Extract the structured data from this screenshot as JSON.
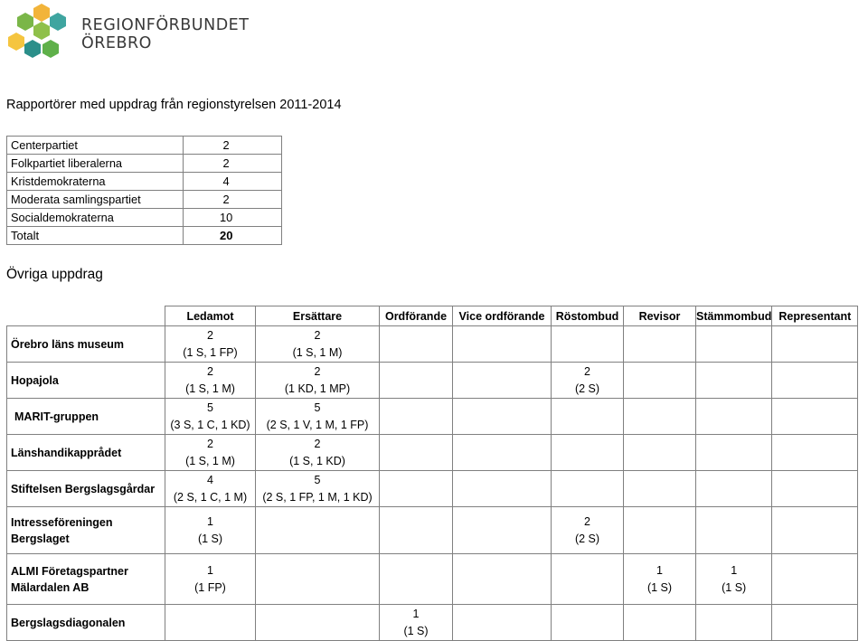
{
  "header": {
    "logo_line1": "REGIONFÖRBUNDET",
    "logo_line2": "ÖREBRO",
    "logo_colors": [
      "#f2b43a",
      "#7ab648",
      "#3fa5a0",
      "#8fc04a",
      "#f5c53f",
      "#2b8f8a",
      "#5fb04a"
    ]
  },
  "doc_title": "Rapportörer med uppdrag från regionstyrelsen 2011-2014",
  "summary": {
    "rows": [
      {
        "party": "Centerpartiet",
        "count": "2"
      },
      {
        "party": "Folkpartiet liberalerna",
        "count": "2"
      },
      {
        "party": "Kristdemokraterna",
        "count": "4"
      },
      {
        "party": "Moderata samlingspartiet",
        "count": "2"
      },
      {
        "party": "Socialdemokraterna",
        "count": "10"
      }
    ],
    "total_label": "Totalt",
    "total_value": "20"
  },
  "section_title": "Övriga uppdrag",
  "assignments": {
    "headers": [
      "Ledamot",
      "Ersättare",
      "Ordförande",
      "Vice ordförande",
      "Röstombud",
      "Revisor",
      "Stämmombud",
      "Representant"
    ],
    "rows": [
      {
        "org": "Örebro läns museum",
        "cells": [
          [
            "2",
            "(1 S, 1 FP)"
          ],
          [
            "2",
            "(1 S, 1 M)"
          ],
          [],
          [],
          [],
          [],
          [],
          []
        ]
      },
      {
        "org": "Hopajola",
        "cells": [
          [
            "2",
            "(1 S, 1 M)"
          ],
          [
            "2",
            "(1 KD, 1 MP)"
          ],
          [],
          [],
          [
            "2",
            "(2 S)"
          ],
          [],
          [],
          []
        ]
      },
      {
        "org": "MARIT-gruppen",
        "cells": [
          [
            "5",
            "(3 S, 1 C, 1 KD)"
          ],
          [
            "5",
            "(2 S, 1 V, 1 M, 1 FP)"
          ],
          [],
          [],
          [],
          [],
          [],
          []
        ]
      },
      {
        "org": "Länshandikapprådet",
        "cells": [
          [
            "2",
            "(1 S, 1 M)"
          ],
          [
            "2",
            "(1 S, 1 KD)"
          ],
          [],
          [],
          [],
          [],
          [],
          []
        ]
      },
      {
        "org": "Stiftelsen Bergslagsgårdar",
        "cells": [
          [
            "4",
            "(2 S, 1 C, 1 M)"
          ],
          [
            "5",
            "(2 S, 1 FP, 1 M, 1 KD)"
          ],
          [],
          [],
          [],
          [],
          [],
          []
        ]
      },
      {
        "org": "Intresseföreningen Bergslaget",
        "cells": [
          [
            "1",
            "(1 S)"
          ],
          [],
          [],
          [],
          [
            "2",
            "(2 S)"
          ],
          [],
          [],
          []
        ]
      },
      {
        "org": "ALMI Företagspartner Mälardalen AB",
        "cells": [
          [
            "1",
            "(1 FP)"
          ],
          [],
          [],
          [],
          [],
          [
            "1",
            "(1 S)"
          ],
          [
            "1",
            "(1 S)"
          ],
          []
        ]
      },
      {
        "org": "Bergslagsdiagonalen",
        "cells": [
          [],
          [],
          [
            "1",
            "(1 S)"
          ],
          [],
          [],
          [],
          [],
          []
        ]
      }
    ]
  }
}
